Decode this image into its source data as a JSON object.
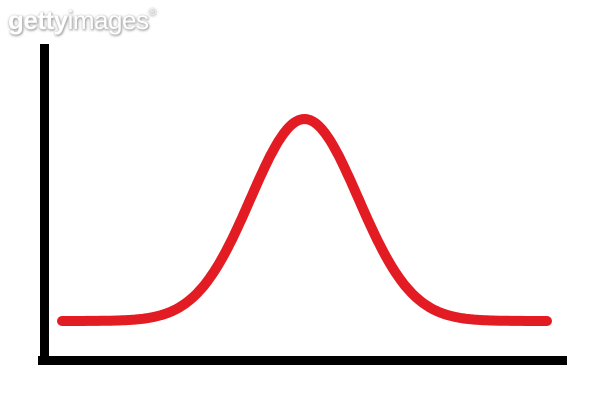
{
  "watermark": {
    "text": "gettyimages",
    "brand_bold": "getty",
    "brand_light": "images",
    "registered_mark": "®"
  },
  "chart_data": {
    "type": "line",
    "title": "",
    "xlabel": "",
    "ylabel": "",
    "legend": false,
    "grid": false,
    "tick_labels": false,
    "description": "Symmetric bell curve (normal / Gaussian distribution) drawn as a single thick red line above a plain black L-shaped axis frame; no ticks, numbers, gridlines, legend or labels are shown",
    "axes": {
      "color": "#000000",
      "x_axis": true,
      "y_axis": true,
      "arrowheads": false
    },
    "series": [
      {
        "name": "normal distribution curve",
        "color": "#e31b23",
        "shape": "gaussian",
        "mean": 0,
        "std_dev": 1,
        "peak_height": 1.0,
        "x_min": -4.5,
        "x_max": 4.5,
        "sample_points": {
          "x": [
            -4.5,
            -4,
            -3.5,
            -3,
            -2.5,
            -2,
            -1.5,
            -1,
            -0.5,
            0,
            0.5,
            1,
            1.5,
            2,
            2.5,
            3,
            3.5,
            4,
            4.5
          ],
          "y": [
            0.0,
            0.0003,
            0.0022,
            0.0111,
            0.0439,
            0.1353,
            0.3247,
            0.6065,
            0.8825,
            1.0,
            0.8825,
            0.6065,
            0.3247,
            0.1353,
            0.0439,
            0.0111,
            0.0022,
            0.0003,
            0.0
          ]
        }
      }
    ]
  }
}
